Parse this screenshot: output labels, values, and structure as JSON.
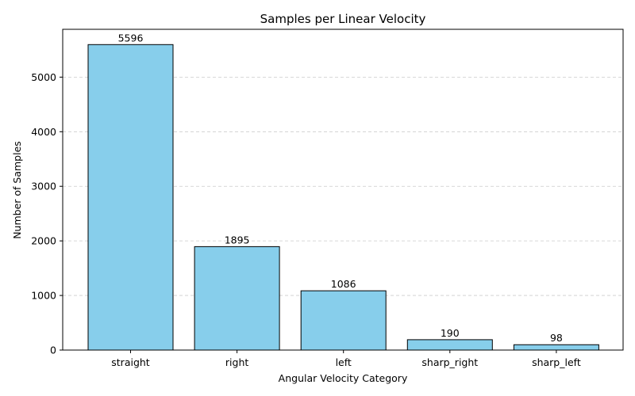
{
  "chart_data": {
    "type": "bar",
    "title": "Samples per Linear Velocity",
    "xlabel": "Angular Velocity Category",
    "ylabel": "Number of Samples",
    "categories": [
      "straight",
      "right",
      "left",
      "sharp_right",
      "sharp_left"
    ],
    "values": [
      5596,
      1895,
      1086,
      190,
      98
    ],
    "data_labels": [
      "5596",
      "1895",
      "1086",
      "190",
      "98"
    ],
    "yticks": [
      0,
      1000,
      2000,
      3000,
      4000,
      5000
    ],
    "ylim": [
      0,
      5876
    ],
    "grid": "y-dashed",
    "colors": {
      "bar_fill": "#87ceeb",
      "bar_edge": "#000000",
      "grid": "#cccccc"
    }
  }
}
